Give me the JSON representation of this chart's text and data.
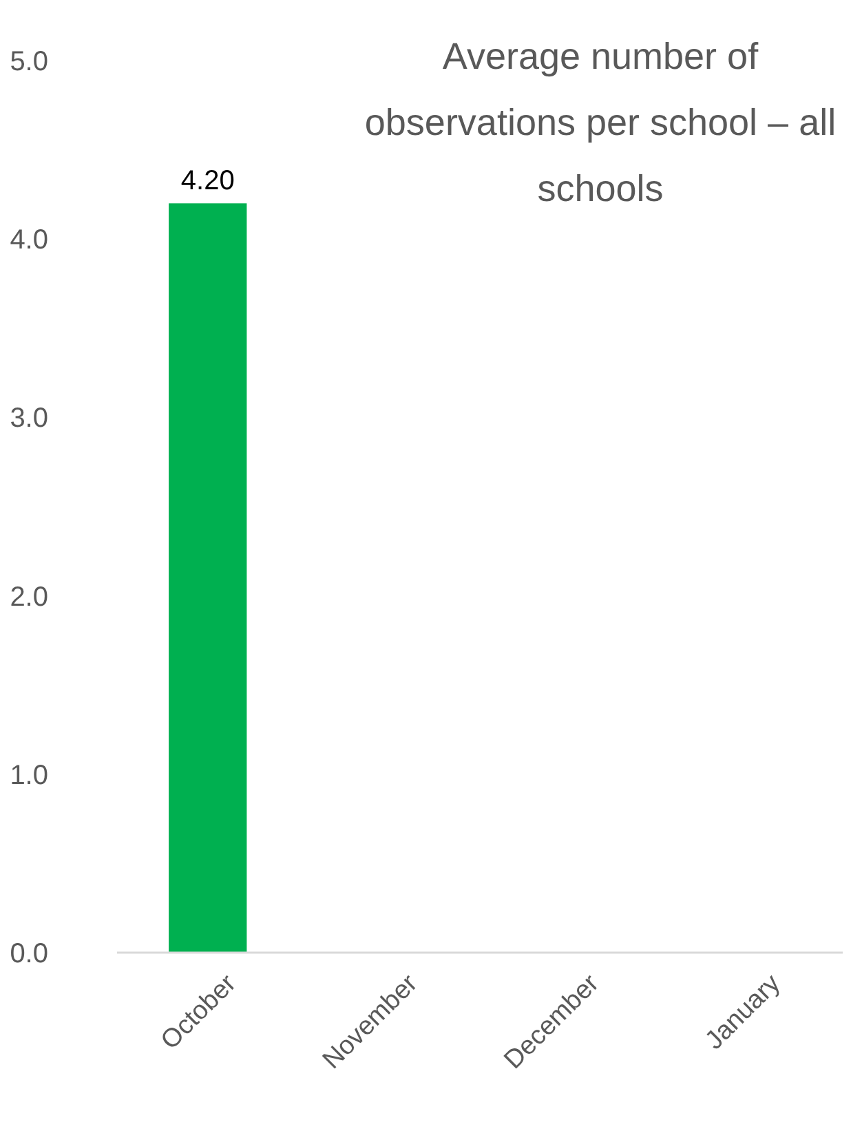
{
  "chart_data": {
    "type": "bar",
    "title": "Average number of observations per school – all schools",
    "categories": [
      "October",
      "November",
      "December",
      "January"
    ],
    "values": [
      4.2,
      null,
      null,
      null
    ],
    "value_labels": [
      "4.20",
      null,
      null,
      null
    ],
    "color": "#00b050",
    "ylim": [
      0,
      5
    ],
    "yticks": [
      {
        "value": 0,
        "label": "0.0"
      },
      {
        "value": 1,
        "label": "1.0"
      },
      {
        "value": 2,
        "label": "2.0"
      },
      {
        "value": 3,
        "label": "3.0"
      },
      {
        "value": 4,
        "label": "4.0"
      },
      {
        "value": 5,
        "label": "5.0"
      }
    ],
    "data_labels": false
  }
}
